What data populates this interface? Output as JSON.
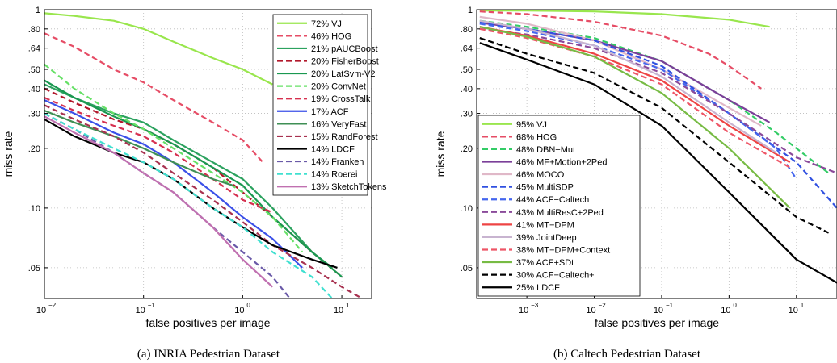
{
  "chart_data": [
    {
      "type": "line",
      "caption": "(a)  INRIA Pedestrian Dataset",
      "xlabel": "false positives per image",
      "ylabel": "miss rate",
      "xscale": "log",
      "yscale": "log",
      "xlim": [
        0.01,
        20
      ],
      "ylim": [
        0.035,
        1
      ],
      "xticks": [
        0.01,
        0.1,
        1,
        10
      ],
      "xtick_labels": [
        {
          "base": "10",
          "exp": "−2"
        },
        {
          "base": "10",
          "exp": "−1"
        },
        {
          "base": "10",
          "exp": "0"
        },
        {
          "base": "10",
          "exp": "1"
        }
      ],
      "yticks": [
        1,
        0.8,
        0.64,
        0.5,
        0.4,
        0.3,
        0.2,
        0.1,
        0.05
      ],
      "ytick_labels": [
        "1",
        ".80",
        ".64",
        ".50",
        ".40",
        ".30",
        ".20",
        ".10",
        ".05"
      ],
      "grid": true,
      "legend_position": "top-right",
      "series": [
        {
          "name": "72% VJ",
          "color": "#99e64d",
          "dash": "solid",
          "x": [
            0.01,
            0.02,
            0.05,
            0.1,
            0.2,
            0.5,
            1.0,
            2.0
          ],
          "y": [
            0.96,
            0.93,
            0.88,
            0.8,
            0.69,
            0.57,
            0.5,
            0.42
          ]
        },
        {
          "name": "46% HOG",
          "color": "#e64d66",
          "dash": "dashed",
          "x": [
            0.01,
            0.02,
            0.05,
            0.1,
            0.2,
            0.5,
            1.0,
            1.6
          ],
          "y": [
            0.76,
            0.65,
            0.5,
            0.43,
            0.35,
            0.27,
            0.22,
            0.17
          ]
        },
        {
          "name": "21% pAUCBoost",
          "color": "#2ca25f",
          "dash": "solid",
          "x": [
            0.01,
            0.02,
            0.05,
            0.1,
            0.2,
            0.5,
            1.0,
            2.0,
            5.0,
            8.0
          ],
          "y": [
            0.42,
            0.36,
            0.3,
            0.27,
            0.22,
            0.17,
            0.14,
            0.1,
            0.06,
            0.05
          ]
        },
        {
          "name": "20% FisherBoost",
          "color": "#b2182b",
          "dash": "dashed",
          "x": [
            0.01,
            0.02,
            0.05,
            0.1,
            0.2,
            0.5,
            1.0,
            2.0,
            5.0,
            10.0
          ],
          "y": [
            0.4,
            0.34,
            0.28,
            0.25,
            0.21,
            0.16,
            0.12,
            0.09,
            0.06,
            0.045
          ]
        },
        {
          "name": "20% LatSvm-V2",
          "color": "#1a9850",
          "dash": "solid",
          "x": [
            0.01,
            0.02,
            0.05,
            0.1,
            0.2,
            0.5,
            1.0,
            2.0,
            5.0,
            10.0
          ],
          "y": [
            0.44,
            0.36,
            0.29,
            0.25,
            0.21,
            0.16,
            0.13,
            0.09,
            0.06,
            0.045
          ]
        },
        {
          "name": "20% ConvNet",
          "color": "#66e066",
          "dash": "dashed",
          "x": [
            0.01,
            0.02,
            0.05,
            0.1,
            0.2,
            0.5,
            1.0,
            2.0,
            4.0
          ],
          "y": [
            0.53,
            0.4,
            0.3,
            0.25,
            0.2,
            0.15,
            0.12,
            0.09,
            0.06
          ]
        },
        {
          "name": "19% CrossTalk",
          "color": "#d6304f",
          "dash": "dashed",
          "x": [
            0.01,
            0.02,
            0.05,
            0.1,
            0.2,
            0.5,
            1.0,
            2.0
          ],
          "y": [
            0.36,
            0.31,
            0.26,
            0.23,
            0.19,
            0.14,
            0.11,
            0.095
          ]
        },
        {
          "name": "17% ACF",
          "color": "#3b50e8",
          "dash": "solid",
          "x": [
            0.01,
            0.02,
            0.05,
            0.1,
            0.2,
            0.5,
            1.0,
            2.0,
            4.0
          ],
          "y": [
            0.35,
            0.3,
            0.24,
            0.21,
            0.17,
            0.12,
            0.09,
            0.07,
            0.05
          ]
        },
        {
          "name": "16% VeryFast",
          "color": "#3f8f55",
          "dash": "solid",
          "x": [
            0.01,
            0.02,
            0.05,
            0.1,
            0.2,
            0.5,
            0.8
          ],
          "y": [
            0.31,
            0.27,
            0.23,
            0.2,
            0.17,
            0.14,
            0.13
          ]
        },
        {
          "name": "15% RandForest",
          "color": "#a83250",
          "dash": "dashed",
          "x": [
            0.01,
            0.02,
            0.05,
            0.1,
            0.2,
            0.5,
            1.0,
            2.0,
            5.0,
            10.0,
            16.0
          ],
          "y": [
            0.33,
            0.28,
            0.23,
            0.19,
            0.15,
            0.11,
            0.085,
            0.065,
            0.05,
            0.04,
            0.035
          ]
        },
        {
          "name": "14% LDCF",
          "color": "#000000",
          "dash": "solid",
          "x": [
            0.01,
            0.02,
            0.05,
            0.1,
            0.2,
            0.5,
            1.0,
            2.0,
            5.0,
            9.0
          ],
          "y": [
            0.28,
            0.23,
            0.19,
            0.17,
            0.14,
            0.1,
            0.08,
            0.065,
            0.055,
            0.05
          ]
        },
        {
          "name": "14% Franken",
          "color": "#6a5aa8",
          "dash": "dashed",
          "x": [
            0.01,
            0.02,
            0.05,
            0.1,
            0.2,
            0.5,
            1.0,
            2.0,
            3.0
          ],
          "y": [
            0.3,
            0.25,
            0.19,
            0.15,
            0.12,
            0.08,
            0.06,
            0.045,
            0.035
          ]
        },
        {
          "name": "14% Roerei",
          "color": "#40e0d0",
          "dash": "dashed",
          "x": [
            0.01,
            0.02,
            0.05,
            0.1,
            0.2,
            0.5,
            1.0,
            2.0,
            5.0,
            8.0
          ],
          "y": [
            0.3,
            0.25,
            0.2,
            0.17,
            0.14,
            0.1,
            0.08,
            0.06,
            0.045,
            0.035
          ]
        },
        {
          "name": "13% SketchTokens",
          "color": "#c070b0",
          "dash": "solid",
          "x": [
            0.01,
            0.02,
            0.05,
            0.1,
            0.2,
            0.5,
            1.0,
            2.0
          ],
          "y": [
            0.29,
            0.24,
            0.19,
            0.15,
            0.12,
            0.08,
            0.055,
            0.04
          ]
        }
      ]
    },
    {
      "type": "line",
      "caption": "(b)  Caltech Pedestrian Dataset",
      "xlabel": "false positives per image",
      "ylabel": "miss rate",
      "xscale": "log",
      "yscale": "log",
      "xlim": [
        0.00018,
        40
      ],
      "ylim": [
        0.035,
        1
      ],
      "xticks": [
        0.001,
        0.01,
        0.1,
        1,
        10
      ],
      "xtick_labels": [
        {
          "base": "10",
          "exp": "−3"
        },
        {
          "base": "10",
          "exp": "−2"
        },
        {
          "base": "10",
          "exp": "−1"
        },
        {
          "base": "10",
          "exp": "0"
        },
        {
          "base": "10",
          "exp": "1"
        }
      ],
      "yticks": [
        1,
        0.8,
        0.64,
        0.5,
        0.4,
        0.3,
        0.2,
        0.1,
        0.05
      ],
      "ytick_labels": [
        "1",
        ".80",
        ".64",
        ".50",
        ".40",
        ".30",
        ".20",
        ".10",
        ".05"
      ],
      "grid": true,
      "legend_position": "bottom-left",
      "series": [
        {
          "name": "95% VJ",
          "color": "#99e64d",
          "dash": "solid",
          "x": [
            0.0002,
            0.001,
            0.01,
            0.1,
            1.0,
            4.0
          ],
          "y": [
            0.99,
            0.99,
            0.98,
            0.95,
            0.89,
            0.82
          ]
        },
        {
          "name": "68% HOG",
          "color": "#e64d66",
          "dash": "dashed",
          "x": [
            0.0002,
            0.001,
            0.01,
            0.1,
            0.5,
            1.0,
            3.0
          ],
          "y": [
            0.98,
            0.95,
            0.87,
            0.74,
            0.6,
            0.52,
            0.4
          ]
        },
        {
          "name": "48% DBN−Mut",
          "color": "#33cc66",
          "dash": "dashed",
          "x": [
            0.0002,
            0.001,
            0.01,
            0.1,
            1.0,
            5.0,
            10.0,
            30.0
          ],
          "y": [
            0.88,
            0.82,
            0.72,
            0.55,
            0.35,
            0.24,
            0.2,
            0.15
          ]
        },
        {
          "name": "46% MF+Motion+2Ped",
          "color": "#7b3f99",
          "dash": "solid",
          "x": [
            0.0002,
            0.001,
            0.01,
            0.1,
            1.0,
            4.0
          ],
          "y": [
            0.86,
            0.8,
            0.7,
            0.55,
            0.35,
            0.27
          ]
        },
        {
          "name": "46% MOCO",
          "color": "#e0b8c8",
          "dash": "solid",
          "x": [
            0.0002,
            0.001,
            0.01,
            0.1,
            1.0,
            3.0
          ],
          "y": [
            0.92,
            0.85,
            0.7,
            0.5,
            0.32,
            0.26
          ]
        },
        {
          "name": "45% MultiSDP",
          "color": "#3050e0",
          "dash": "dashed",
          "x": [
            0.0002,
            0.001,
            0.01,
            0.1,
            1.0,
            10.0,
            40.0
          ],
          "y": [
            0.86,
            0.8,
            0.7,
            0.52,
            0.3,
            0.17,
            0.1
          ]
        },
        {
          "name": "44% ACF−Caltech",
          "color": "#4466ee",
          "dash": "dashed",
          "x": [
            0.0002,
            0.001,
            0.01,
            0.1,
            1.0,
            5.0,
            10.0
          ],
          "y": [
            0.85,
            0.78,
            0.66,
            0.5,
            0.3,
            0.2,
            0.14
          ]
        },
        {
          "name": "43% MultiResC+2Ped",
          "color": "#8a4a9a",
          "dash": "dashed",
          "x": [
            0.0002,
            0.001,
            0.01,
            0.1,
            1.0,
            10.0,
            40.0
          ],
          "y": [
            0.8,
            0.75,
            0.64,
            0.48,
            0.3,
            0.18,
            0.15
          ]
        },
        {
          "name": "41% MT−DPM",
          "color": "#ee4444",
          "dash": "solid",
          "x": [
            0.0002,
            0.001,
            0.01,
            0.1,
            1.0,
            8.0
          ],
          "y": [
            0.82,
            0.74,
            0.6,
            0.44,
            0.26,
            0.17
          ]
        },
        {
          "name": "39% JointDeep",
          "color": "#c8b4d0",
          "dash": "solid",
          "x": [
            0.0002,
            0.001,
            0.01,
            0.1,
            1.0,
            5.0
          ],
          "y": [
            0.88,
            0.8,
            0.66,
            0.46,
            0.27,
            0.19
          ]
        },
        {
          "name": "38% MT−DPM+Context",
          "color": "#ee5566",
          "dash": "dashed",
          "x": [
            0.0002,
            0.001,
            0.01,
            0.1,
            1.0,
            8.0
          ],
          "y": [
            0.8,
            0.72,
            0.58,
            0.42,
            0.24,
            0.16
          ]
        },
        {
          "name": "37% ACF+SDt",
          "color": "#77bb44",
          "dash": "solid",
          "x": [
            0.0002,
            0.001,
            0.01,
            0.1,
            1.0,
            8.0
          ],
          "y": [
            0.82,
            0.73,
            0.58,
            0.38,
            0.2,
            0.1
          ]
        },
        {
          "name": "30% ACF−Caltech+",
          "color": "#000000",
          "dash": "dashed",
          "x": [
            0.0002,
            0.001,
            0.01,
            0.1,
            1.0,
            10.0,
            30.0
          ],
          "y": [
            0.72,
            0.6,
            0.48,
            0.32,
            0.17,
            0.09,
            0.075
          ]
        },
        {
          "name": "25% LDCF",
          "color": "#000000",
          "dash": "solid",
          "x": [
            0.0002,
            0.001,
            0.01,
            0.1,
            1.0,
            10.0,
            40.0
          ],
          "y": [
            0.68,
            0.56,
            0.42,
            0.26,
            0.12,
            0.055,
            0.042
          ]
        }
      ]
    }
  ]
}
